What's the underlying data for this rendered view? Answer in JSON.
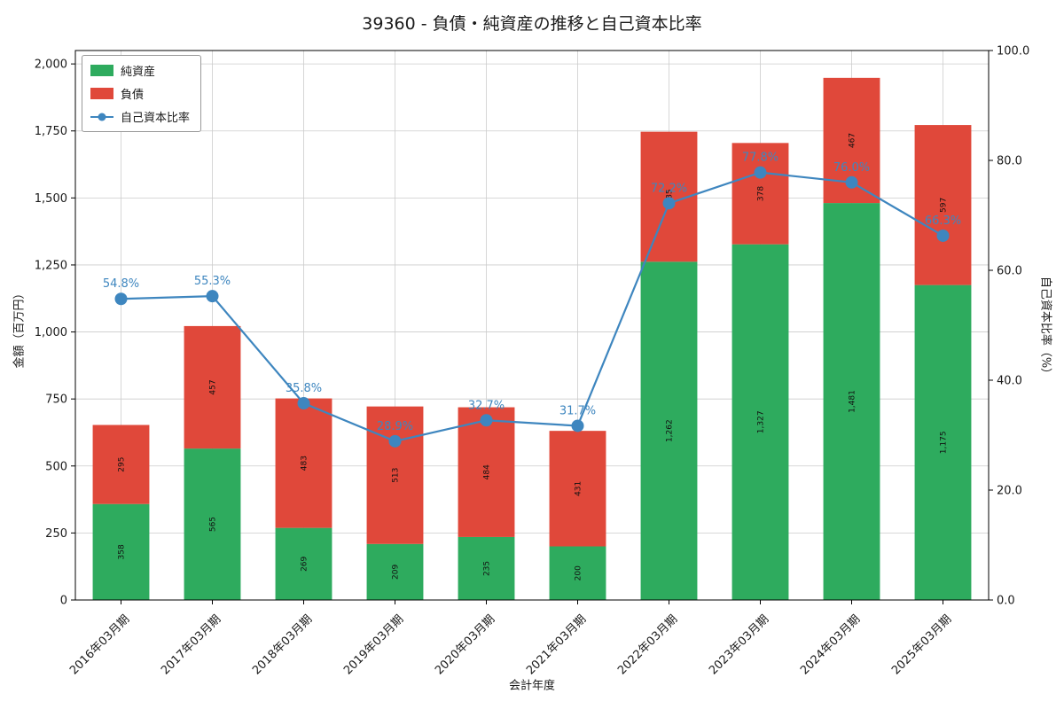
{
  "title": "39360 - 負債・純資産の推移と自己資本比率",
  "chart_data": {
    "type": "bar",
    "subtype": "stacked-bar-with-line",
    "title": "39360 - 負債・純資産の推移と自己資本比率",
    "xlabel": "会計年度",
    "ylabel_left": "金額（百万円）",
    "ylabel_right": "自己資本比率（%）",
    "categories": [
      "2016年03月期",
      "2017年03月期",
      "2018年03月期",
      "2019年03月期",
      "2020年03月期",
      "2021年03月期",
      "2022年03月期",
      "2023年03月期",
      "2024年03月期",
      "2025年03月期"
    ],
    "series": [
      {
        "name": "純資産",
        "color": "#2eab5e",
        "values": [
          358,
          565,
          269,
          209,
          235,
          200,
          1262,
          1327,
          1481,
          1175
        ]
      },
      {
        "name": "負債",
        "color": "#e0483a",
        "values": [
          295,
          457,
          483,
          513,
          484,
          431,
          485,
          378,
          467,
          597
        ]
      }
    ],
    "line": {
      "name": "自己資本比率",
      "color": "#3e86bf",
      "values": [
        54.8,
        55.3,
        35.8,
        28.9,
        32.7,
        31.7,
        72.2,
        77.8,
        76.0,
        66.3
      ]
    },
    "ylim_left": [
      0,
      2050
    ],
    "yticks_left": [
      0,
      250,
      500,
      750,
      1000,
      1250,
      1500,
      1750,
      2000
    ],
    "ylim_right": [
      0,
      100
    ],
    "yticks_right": [
      0,
      20,
      40,
      60,
      80,
      100
    ],
    "grid": true,
    "legend_position": "upper-left"
  }
}
